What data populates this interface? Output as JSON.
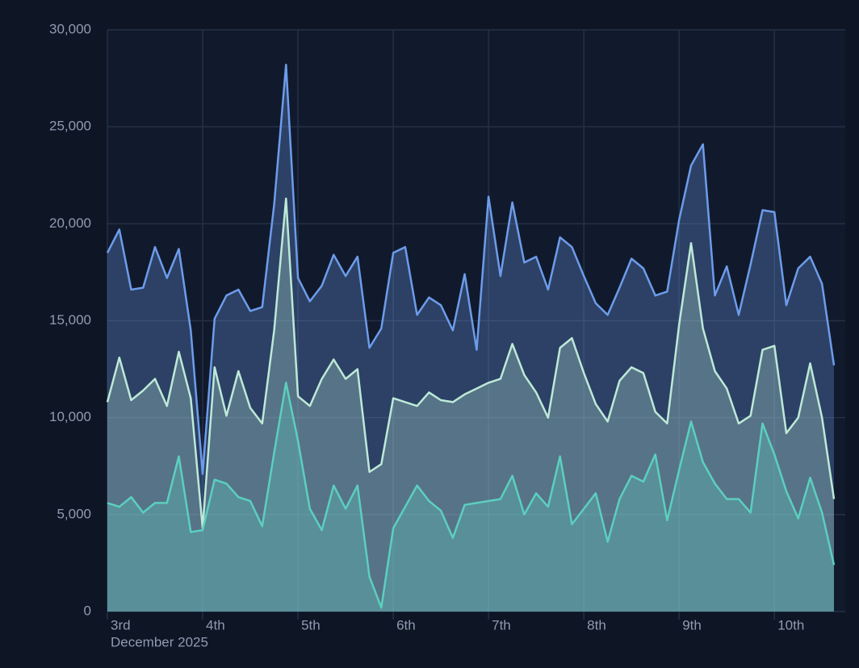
{
  "chart_data": {
    "type": "area",
    "x_label": "December 2025",
    "categories": [
      "3rd",
      null,
      null,
      null,
      null,
      null,
      null,
      null,
      "4th",
      null,
      null,
      null,
      null,
      null,
      null,
      null,
      "5th",
      null,
      null,
      null,
      null,
      null,
      null,
      null,
      "6th",
      null,
      null,
      null,
      null,
      null,
      null,
      null,
      "7th",
      null,
      null,
      null,
      null,
      null,
      null,
      null,
      "8th",
      null,
      null,
      null,
      null,
      null,
      null,
      null,
      "9th",
      null,
      null,
      null,
      null,
      null,
      null,
      null,
      "10th",
      null,
      null,
      null,
      null,
      null
    ],
    "series": [
      {
        "color": "#6d9ceb",
        "values": [
          18500,
          19700,
          16600,
          16700,
          18800,
          17200,
          18700,
          14500,
          7100,
          15100,
          16300,
          16600,
          15500,
          15700,
          21000,
          28200,
          17200,
          16000,
          16800,
          18400,
          17300,
          18300,
          13600,
          14600,
          18500,
          18800,
          15300,
          16200,
          15800,
          14500,
          17400,
          13500,
          21400,
          17300,
          21100,
          18000,
          18300,
          16600,
          19300,
          18800,
          17300,
          15900,
          15300,
          16700,
          18200,
          17700,
          16300,
          16500,
          20200,
          23000,
          24100,
          16300,
          17800,
          15300,
          17900,
          20700,
          20600,
          15800,
          17700,
          18300,
          16900,
          12700
        ]
      },
      {
        "color": "#bde9d8",
        "values": [
          10800,
          13100,
          10900,
          11400,
          12000,
          10600,
          13400,
          11000,
          4300,
          12600,
          10100,
          12400,
          10500,
          9700,
          14500,
          21300,
          11100,
          10600,
          12000,
          13000,
          12000,
          12500,
          7200,
          7600,
          11000,
          10800,
          10600,
          11300,
          10900,
          10800,
          11200,
          11500,
          11800,
          12000,
          13800,
          12200,
          11300,
          10000,
          13600,
          14100,
          12300,
          10700,
          9800,
          11900,
          12600,
          12300,
          10300,
          9700,
          14800,
          19000,
          14600,
          12400,
          11500,
          9700,
          10100,
          13500,
          13700,
          9200,
          10000,
          12800,
          10000,
          5800
        ]
      },
      {
        "color": "#5ccfbf",
        "values": [
          5600,
          5400,
          5900,
          5100,
          5600,
          5600,
          8000,
          4100,
          4200,
          6800,
          6600,
          5900,
          5700,
          4400,
          8200,
          11800,
          8800,
          5300,
          4200,
          6500,
          5300,
          6500,
          1800,
          200,
          4300,
          5400,
          6500,
          5700,
          5200,
          3800,
          5500,
          5600,
          5700,
          5800,
          7000,
          5000,
          6100,
          5400,
          8000,
          4500,
          5300,
          6100,
          3600,
          5800,
          7000,
          6700,
          8100,
          4700,
          7300,
          9800,
          7700,
          6600,
          5800,
          5800,
          5100,
          9700,
          8100,
          6200,
          4800,
          6900,
          5100,
          2400
        ]
      }
    ],
    "ylim": [
      0,
      30000
    ],
    "yticks": [
      0,
      {
        "value": 5000,
        "label": "5,000"
      },
      {
        "value": 10000,
        "label": "10,000"
      },
      {
        "value": 15000,
        "label": "15,000"
      },
      {
        "value": 20000,
        "label": "20,000"
      },
      {
        "value": 25000,
        "label": "25,000"
      },
      {
        "value": 30000,
        "label": "30,000"
      }
    ],
    "grid": true
  }
}
